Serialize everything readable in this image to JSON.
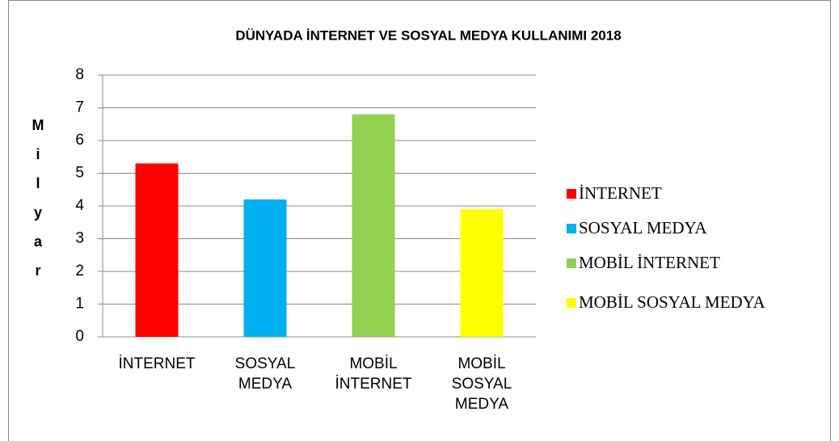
{
  "chart_data": {
    "type": "bar",
    "title": "DÜNYADA İNTERNET VE SOSYAL MEDYA KULLANIMI 2018",
    "y_label": "Milyar",
    "categories": [
      "İNTERNET",
      "SOSYAL MEDYA",
      "MOBİL İNTERNET",
      "MOBİL SOSYAL MEDYA"
    ],
    "values": [
      5.3,
      4.2,
      6.8,
      3.9
    ],
    "colors": [
      "#ff0000",
      "#00b0f0",
      "#92d050",
      "#ffff00"
    ],
    "ylim": [
      0,
      8
    ],
    "yticks": [
      0,
      1,
      2,
      3,
      4,
      5,
      6,
      7,
      8
    ],
    "grid": true,
    "legend": "right"
  }
}
